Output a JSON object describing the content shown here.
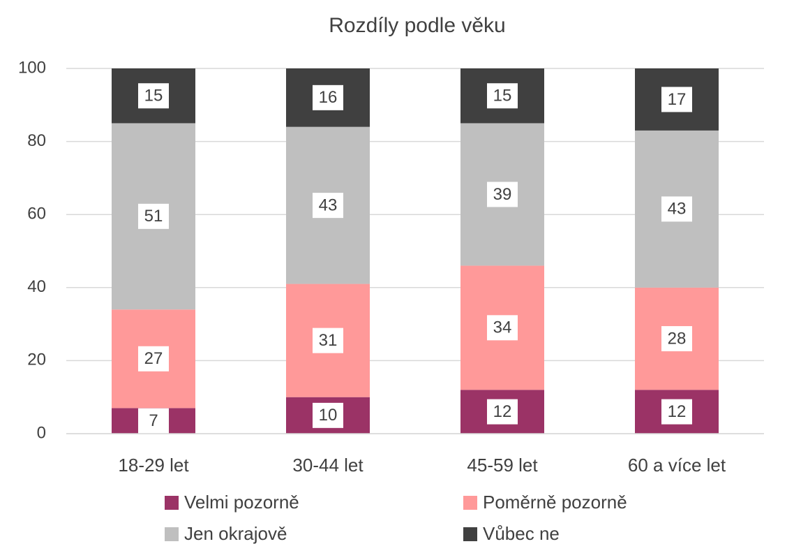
{
  "chart_data": {
    "type": "stacked_bar",
    "title": "Rozdíly podle věku",
    "categories": [
      "18-29 let",
      "30-44 let",
      "45-59 let",
      "60 a více let"
    ],
    "series": [
      {
        "name": "Velmi pozorně",
        "color": "#9b3366",
        "values": [
          7,
          10,
          12,
          12
        ]
      },
      {
        "name": "Poměrně pozorně",
        "color": "#ff9999",
        "values": [
          27,
          31,
          34,
          28
        ]
      },
      {
        "name": "Jen okrajově",
        "color": "#bfbfbf",
        "values": [
          51,
          43,
          39,
          43
        ]
      },
      {
        "name": "Vůbec ne",
        "color": "#404040",
        "values": [
          15,
          16,
          15,
          17
        ]
      }
    ],
    "ylim": [
      0,
      100
    ],
    "yticks": [
      0,
      20,
      40,
      60,
      80,
      100
    ],
    "grid": true
  }
}
